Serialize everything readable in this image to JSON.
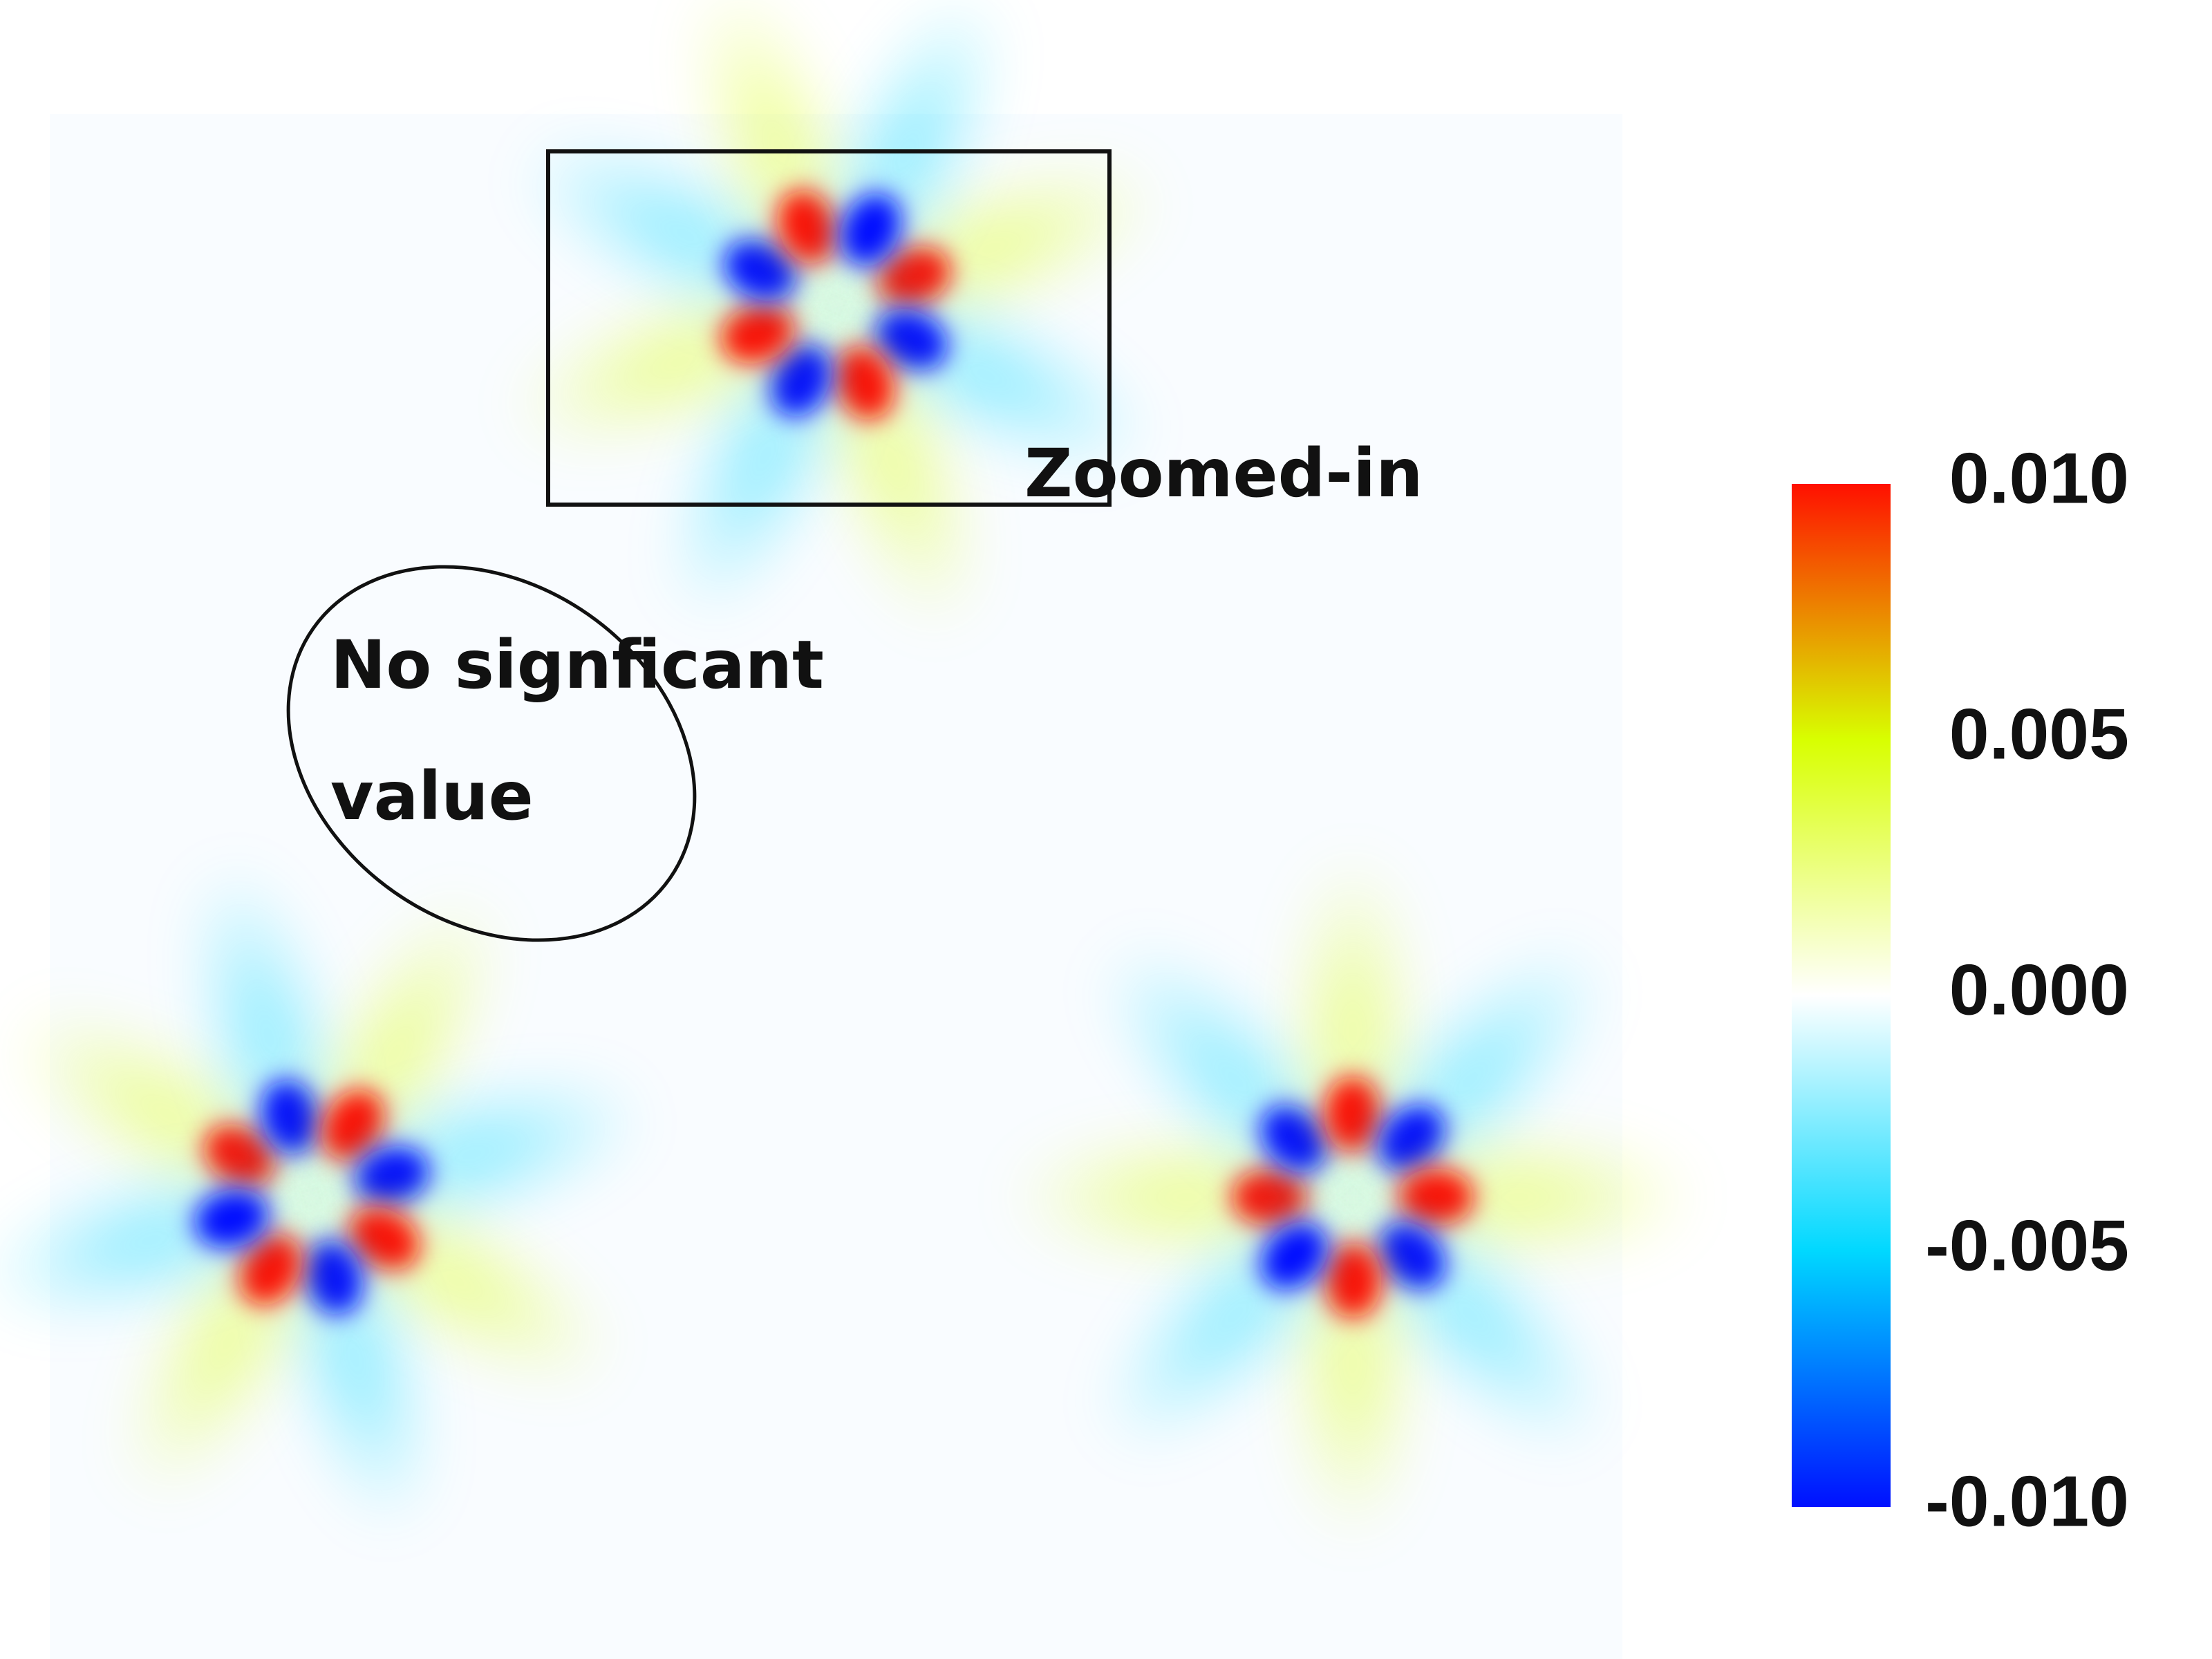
{
  "chart_data": {
    "type": "heatmap",
    "annotations": [
      "Zoomed-in",
      "No signficant",
      "value"
    ],
    "clim": [
      -0.01,
      0.01
    ],
    "cticks": [
      {
        "value": 0.01,
        "label": "0.010"
      },
      {
        "value": 0.005,
        "label": "0.005"
      },
      {
        "value": 0,
        "label": "0.000"
      },
      {
        "value": -0.005,
        "label": "-0.005"
      },
      {
        "value": -0.01,
        "label": "-0.010"
      }
    ],
    "colormap": [
      "#0010ff",
      "#00d8ff",
      "#ffffff",
      "#d8ff00",
      "#ff1000"
    ]
  }
}
